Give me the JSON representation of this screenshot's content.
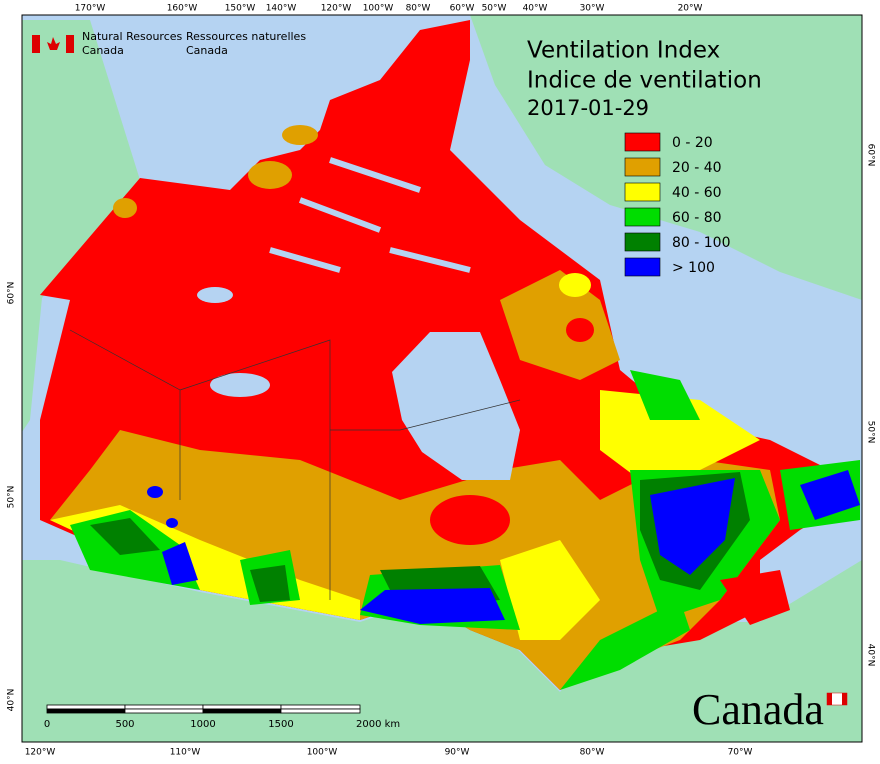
{
  "agency": {
    "english": [
      "Natural Resources",
      "Canada"
    ],
    "french": [
      "Ressources naturelles",
      "Canada"
    ]
  },
  "title": [
    "Ventilation Index",
    "Indice de ventilation",
    "2017-01-29"
  ],
  "legend": [
    {
      "label": "0 - 20",
      "color": "#ff0000"
    },
    {
      "label": "20 - 40",
      "color": "#e0a000"
    },
    {
      "label": "40 - 60",
      "color": "#ffff00"
    },
    {
      "label": "60 - 80",
      "color": "#00dd00"
    },
    {
      "label": "80 - 100",
      "color": "#008000"
    },
    {
      "label": "> 100",
      "color": "#0000ff"
    }
  ],
  "graticule": {
    "top": [
      "170°W",
      "160°W",
      "150°W",
      "140°W",
      "120°W",
      "100°W",
      "80°W",
      "60°W",
      "50°W",
      "40°W",
      "30°W",
      "20°W"
    ],
    "bottom": [
      "120°W",
      "110°W",
      "100°W",
      "90°W",
      "80°W",
      "70°W"
    ],
    "left": [
      "60°N",
      "50°N",
      "40°N"
    ],
    "right": [
      "60°N",
      "50°N",
      "40°N"
    ]
  },
  "scale_bar": [
    "0",
    "500",
    "1000",
    "1500",
    "2000 km"
  ],
  "wordmark": "Canada"
}
